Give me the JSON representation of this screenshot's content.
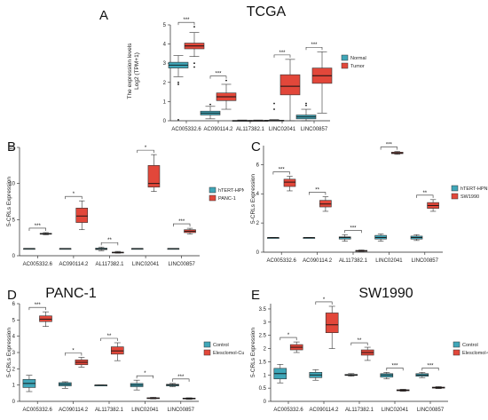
{
  "colors": {
    "control": "#3fa6b8",
    "case": "#e2473a",
    "outline": "#333333",
    "axis": "#222222"
  },
  "chart_data": [
    {
      "id": "A",
      "type": "boxplot",
      "letter": "A",
      "title": "TCGA",
      "ylabel": "The expression levels",
      "ylabel2": "Log2 (TPM+1)",
      "ylim": [
        0,
        5
      ],
      "yticks": [
        0,
        1,
        2,
        3,
        4,
        5
      ],
      "categories": [
        "AC005332.6",
        "AC090114.2",
        "AL117382.1",
        "LINC02041",
        "LINC00857"
      ],
      "significance": [
        "***",
        "***",
        "",
        "***",
        "***"
      ],
      "series": [
        {
          "name": "Normal",
          "boxes": [
            {
              "min": 2.3,
              "q1": 2.75,
              "med": 2.9,
              "q3": 3.05,
              "max": 3.4,
              "outliers": [
                1.9,
                2.0,
                0.05
              ]
            },
            {
              "min": 0.1,
              "q1": 0.3,
              "med": 0.4,
              "q3": 0.5,
              "max": 0.75,
              "outliers": [
                0.85
              ]
            },
            {
              "min": 0.0,
              "q1": 0.0,
              "med": 0.0,
              "q3": 0.02,
              "max": 0.04,
              "outliers": []
            },
            {
              "min": 0.0,
              "q1": 0.0,
              "med": 0.0,
              "q3": 0.03,
              "max": 0.06,
              "outliers": [
                0.6,
                0.9
              ]
            },
            {
              "min": 0.0,
              "q1": 0.1,
              "med": 0.2,
              "q3": 0.3,
              "max": 0.6,
              "outliers": [
                0.8,
                0.9
              ]
            }
          ]
        },
        {
          "name": "Tumor",
          "boxes": [
            {
              "min": 3.35,
              "q1": 3.75,
              "med": 3.9,
              "q3": 4.05,
              "max": 4.6,
              "outliers": [
                3.0,
                2.8,
                4.9
              ]
            },
            {
              "min": 0.6,
              "q1": 1.05,
              "med": 1.25,
              "q3": 1.45,
              "max": 1.9,
              "outliers": [
                2.1
              ]
            },
            {
              "min": 0.0,
              "q1": 0.0,
              "med": 0.0,
              "q3": 0.02,
              "max": 0.04,
              "outliers": []
            },
            {
              "min": 0.0,
              "q1": 1.35,
              "med": 1.8,
              "q3": 2.4,
              "max": 3.2,
              "outliers": []
            },
            {
              "min": 0.4,
              "q1": 1.95,
              "med": 2.35,
              "q3": 2.75,
              "max": 3.6,
              "outliers": []
            }
          ]
        }
      ]
    },
    {
      "id": "B",
      "type": "boxplot",
      "letter": "B",
      "title": "",
      "ylabel": "5-CRLs Expression",
      "ylabel2": "",
      "ylim": [
        0,
        15
      ],
      "yticks": [
        0,
        5,
        10,
        15
      ],
      "categories": [
        "AC005332.6",
        "AC090114.2",
        "AL117382.1",
        "LINC02041",
        "LINC00857"
      ],
      "significance": [
        "***",
        "*",
        "**",
        "*",
        "***"
      ],
      "series": [
        {
          "name": "hTERT-HPNE",
          "boxes": [
            {
              "min": 1.0,
              "q1": 1.0,
              "med": 1.0,
              "q3": 1.0,
              "max": 1.0,
              "outliers": []
            },
            {
              "min": 1.0,
              "q1": 1.0,
              "med": 1.0,
              "q3": 1.0,
              "max": 1.0,
              "outliers": []
            },
            {
              "min": 0.7,
              "q1": 0.85,
              "med": 0.95,
              "q3": 1.05,
              "max": 1.2,
              "outliers": []
            },
            {
              "min": 1.0,
              "q1": 1.0,
              "med": 1.0,
              "q3": 1.0,
              "max": 1.0,
              "outliers": []
            },
            {
              "min": 1.0,
              "q1": 1.0,
              "med": 1.0,
              "q3": 1.0,
              "max": 1.0,
              "outliers": []
            }
          ]
        },
        {
          "name": "PANC-1",
          "boxes": [
            {
              "min": 2.9,
              "q1": 3.0,
              "med": 3.05,
              "q3": 3.1,
              "max": 3.2,
              "outliers": []
            },
            {
              "min": 3.6,
              "q1": 4.6,
              "med": 5.5,
              "q3": 6.6,
              "max": 7.6,
              "outliers": []
            },
            {
              "min": 0.35,
              "q1": 0.4,
              "med": 0.45,
              "q3": 0.5,
              "max": 0.6,
              "outliers": []
            },
            {
              "min": 8.9,
              "q1": 9.5,
              "med": 10.0,
              "q3": 12.5,
              "max": 14.0,
              "outliers": []
            },
            {
              "min": 3.0,
              "q1": 3.2,
              "med": 3.4,
              "q3": 3.6,
              "max": 3.8,
              "outliers": []
            }
          ]
        }
      ]
    },
    {
      "id": "C",
      "type": "boxplot",
      "letter": "C",
      "title": "",
      "ylabel": "5-CRLs Expression",
      "ylabel2": "",
      "ylim": [
        0,
        7.3
      ],
      "yticks": [
        0,
        2,
        4,
        6
      ],
      "categories": [
        "AC005332.6",
        "AC090114.2",
        "AL117382.1",
        "LINC02041",
        "LINC00857"
      ],
      "significance": [
        "***",
        "**",
        "***",
        "***",
        "**"
      ],
      "series": [
        {
          "name": "hTERT-HPNE",
          "boxes": [
            {
              "min": 1.0,
              "q1": 1.0,
              "med": 1.0,
              "q3": 1.0,
              "max": 1.0,
              "outliers": []
            },
            {
              "min": 1.0,
              "q1": 1.0,
              "med": 1.0,
              "q3": 1.0,
              "max": 1.0,
              "outliers": []
            },
            {
              "min": 0.75,
              "q1": 0.9,
              "med": 1.0,
              "q3": 1.05,
              "max": 1.2,
              "outliers": []
            },
            {
              "min": 0.75,
              "q1": 0.9,
              "med": 1.0,
              "q3": 1.15,
              "max": 1.25,
              "outliers": []
            },
            {
              "min": 0.8,
              "q1": 0.9,
              "med": 1.0,
              "q3": 1.1,
              "max": 1.2,
              "outliers": []
            }
          ]
        },
        {
          "name": "SW1990",
          "boxes": [
            {
              "min": 4.2,
              "q1": 4.5,
              "med": 4.8,
              "q3": 5.0,
              "max": 5.2,
              "outliers": []
            },
            {
              "min": 2.8,
              "q1": 3.1,
              "med": 3.3,
              "q3": 3.55,
              "max": 3.8,
              "outliers": []
            },
            {
              "min": 0.05,
              "q1": 0.08,
              "med": 0.1,
              "q3": 0.12,
              "max": 0.15,
              "outliers": []
            },
            {
              "min": 6.7,
              "q1": 6.75,
              "med": 6.8,
              "q3": 6.85,
              "max": 6.9,
              "outliers": []
            },
            {
              "min": 2.8,
              "q1": 3.0,
              "med": 3.2,
              "q3": 3.4,
              "max": 3.6,
              "outliers": []
            }
          ]
        }
      ]
    },
    {
      "id": "D",
      "type": "boxplot",
      "letter": "D",
      "title": "PANC-1",
      "ylabel": "5-CRLs Expression",
      "ylabel2": "",
      "ylim": [
        0,
        6
      ],
      "yticks": [
        0,
        1,
        2,
        3,
        4,
        5,
        6
      ],
      "categories": [
        "AC005332.6",
        "AC090114.2",
        "AL117382.1",
        "LINC02041",
        "LINC00857"
      ],
      "significance": [
        "***",
        "*",
        "**",
        "*",
        "***"
      ],
      "series": [
        {
          "name": "Control",
          "boxes": [
            {
              "min": 0.6,
              "q1": 0.85,
              "med": 1.1,
              "q3": 1.35,
              "max": 1.6,
              "outliers": []
            },
            {
              "min": 0.8,
              "q1": 0.95,
              "med": 1.05,
              "q3": 1.15,
              "max": 1.2,
              "outliers": []
            },
            {
              "min": 1.0,
              "q1": 1.0,
              "med": 1.0,
              "q3": 1.0,
              "max": 1.0,
              "outliers": []
            },
            {
              "min": 0.7,
              "q1": 0.9,
              "med": 1.0,
              "q3": 1.1,
              "max": 1.3,
              "outliers": []
            },
            {
              "min": 0.9,
              "q1": 0.95,
              "med": 1.0,
              "q3": 1.05,
              "max": 1.1,
              "outliers": []
            }
          ]
        },
        {
          "name": "Elesclomol-Cu",
          "boxes": [
            {
              "min": 4.6,
              "q1": 4.9,
              "med": 5.05,
              "q3": 5.25,
              "max": 5.5,
              "outliers": []
            },
            {
              "min": 2.1,
              "q1": 2.25,
              "med": 2.4,
              "q3": 2.55,
              "max": 2.7,
              "outliers": []
            },
            {
              "min": 2.5,
              "q1": 2.9,
              "med": 3.1,
              "q3": 3.35,
              "max": 3.6,
              "outliers": []
            },
            {
              "min": 0.15,
              "q1": 0.18,
              "med": 0.2,
              "q3": 0.22,
              "max": 0.25,
              "outliers": []
            },
            {
              "min": 0.12,
              "q1": 0.15,
              "med": 0.18,
              "q3": 0.2,
              "max": 0.22,
              "outliers": []
            }
          ]
        }
      ]
    },
    {
      "id": "E",
      "type": "boxplot",
      "letter": "E",
      "title": "SW1990",
      "ylabel": "5-CRLs Expression",
      "ylabel2": "",
      "ylim": [
        0,
        3.7
      ],
      "yticks": [
        0.0,
        0.5,
        1.0,
        1.5,
        2.0,
        2.5,
        3.0,
        3.5
      ],
      "categories": [
        "AC005332.6",
        "AC090114.2",
        "AL117382.1",
        "LINC02041",
        "LINC00857"
      ],
      "significance": [
        "*",
        "*",
        "**",
        "***",
        "***"
      ],
      "series": [
        {
          "name": "Control",
          "boxes": [
            {
              "min": 0.7,
              "q1": 0.85,
              "med": 1.05,
              "q3": 1.25,
              "max": 1.4,
              "outliers": []
            },
            {
              "min": 0.8,
              "q1": 0.9,
              "med": 1.0,
              "q3": 1.1,
              "max": 1.2,
              "outliers": []
            },
            {
              "min": 0.95,
              "q1": 0.98,
              "med": 1.0,
              "q3": 1.02,
              "max": 1.05,
              "outliers": []
            },
            {
              "min": 0.85,
              "q1": 0.92,
              "med": 1.0,
              "q3": 1.05,
              "max": 1.1,
              "outliers": []
            },
            {
              "min": 0.9,
              "q1": 0.95,
              "med": 1.0,
              "q3": 1.05,
              "max": 1.1,
              "outliers": []
            }
          ]
        },
        {
          "name": "Elesclomol-Cu",
          "boxes": [
            {
              "min": 1.85,
              "q1": 1.95,
              "med": 2.05,
              "q3": 2.15,
              "max": 2.25,
              "outliers": []
            },
            {
              "min": 2.0,
              "q1": 2.6,
              "med": 2.9,
              "q3": 3.35,
              "max": 3.6,
              "outliers": []
            },
            {
              "min": 1.55,
              "q1": 1.75,
              "med": 1.85,
              "q3": 1.95,
              "max": 2.05,
              "outliers": []
            },
            {
              "min": 0.38,
              "q1": 0.4,
              "med": 0.42,
              "q3": 0.44,
              "max": 0.46,
              "outliers": []
            },
            {
              "min": 0.48,
              "q1": 0.5,
              "med": 0.52,
              "q3": 0.54,
              "max": 0.56,
              "outliers": []
            }
          ]
        }
      ]
    }
  ]
}
